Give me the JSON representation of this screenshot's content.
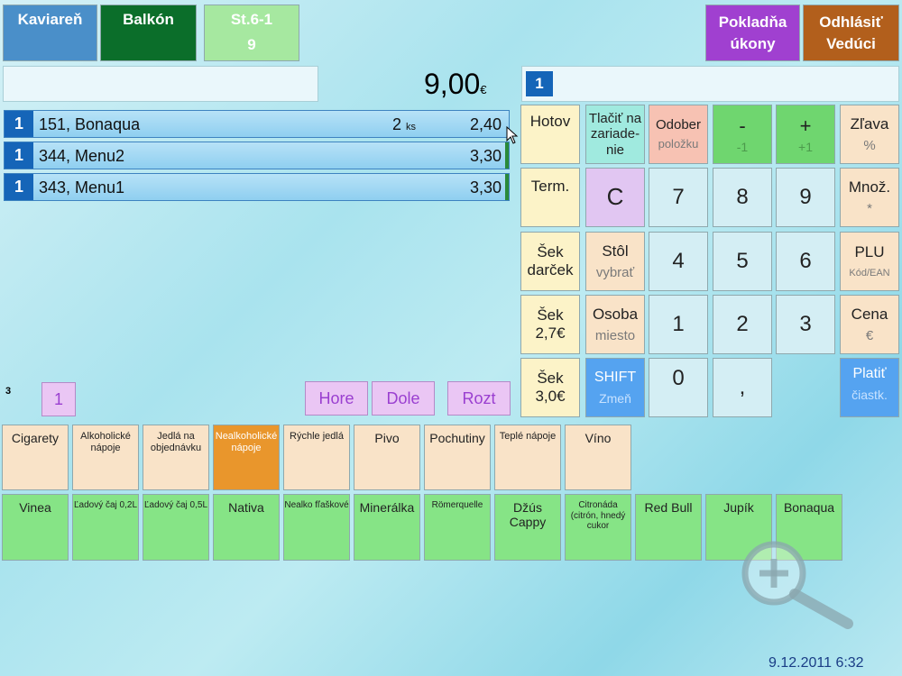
{
  "top": {
    "kaviaren": "Kaviareň",
    "balkon": "Balkón",
    "table_line1": "St.6-1",
    "table_line2": "9",
    "pokladna_line1": "Pokladňa",
    "pokladna_line2": "úkony",
    "odhlasit_line1": "Odhlásiť",
    "odhlasit_line2": "Vedúci"
  },
  "display": {
    "total": "9,00",
    "currency": "€",
    "entry_count": "1"
  },
  "order_lines": [
    {
      "qty": "1",
      "name": "151, Bonaqua",
      "count": "2",
      "unit": "ks",
      "price": "2,40"
    },
    {
      "qty": "1",
      "name": "344, Menu2",
      "count": "",
      "unit": "",
      "price": "3,30"
    },
    {
      "qty": "1",
      "name": "343, Menu1",
      "count": "",
      "unit": "",
      "price": "3,30"
    }
  ],
  "keypad": {
    "hotov": "Hotov",
    "tlacit": "Tlačiť na zariade-nie",
    "odober": "Odober",
    "odober_sub": "položku",
    "minus": "-",
    "minus_sub": "-1",
    "plus": "+",
    "plus_sub": "+1",
    "zlava": "Zľava",
    "zlava_sub": "%",
    "term": "Term.",
    "clear": "C",
    "n7": "7",
    "n8": "8",
    "n9": "9",
    "mnoz": "Množ.",
    "mnoz_sub": "*",
    "sek_darcek": "Šek darček",
    "stol": "Stôl",
    "stol_sub": "vybrať",
    "n4": "4",
    "n5": "5",
    "n6": "6",
    "plu": "PLU",
    "plu_sub": "Kód/EAN",
    "sek27": "Šek 2,7€",
    "osoba": "Osoba",
    "osoba_sub": "miesto",
    "n1": "1",
    "n2": "2",
    "n3": "3",
    "cena": "Cena",
    "cena_sub": "€",
    "sek30": "Šek 3,0€",
    "shift": "SHIFT",
    "shift_sub": "Zmeň",
    "n0": "0",
    "comma": ",",
    "platit": "Platiť",
    "platit_sub": "čiastk."
  },
  "nav": {
    "counter": "3",
    "page": "1",
    "hore": "Hore",
    "dole": "Dole",
    "rozt": "Rozt"
  },
  "categories": [
    "Cigarety",
    "Alkoholické nápoje",
    "Jedlá na objednávku",
    "Nealkoholické nápoje",
    "Rýchle jedlá",
    "Pivo",
    "Pochutiny",
    "Teplé nápoje",
    "Víno"
  ],
  "products": [
    "Vinea",
    "Ľadový čaj 0,2L",
    "Ľadový čaj 0,5L",
    "Nativa",
    "Nealko fľaškové",
    "Minerálka",
    "Römerquelle",
    "Džús Cappy",
    "Citronáda (citrón, hnedý cukor",
    "Red Bull",
    "Jupík",
    "Bonaqua"
  ],
  "clock": "9.12.2011 6:32",
  "colors": {
    "accent_blue": "#1565b8",
    "category_active": "#e9962c",
    "product_green": "#86e486"
  }
}
